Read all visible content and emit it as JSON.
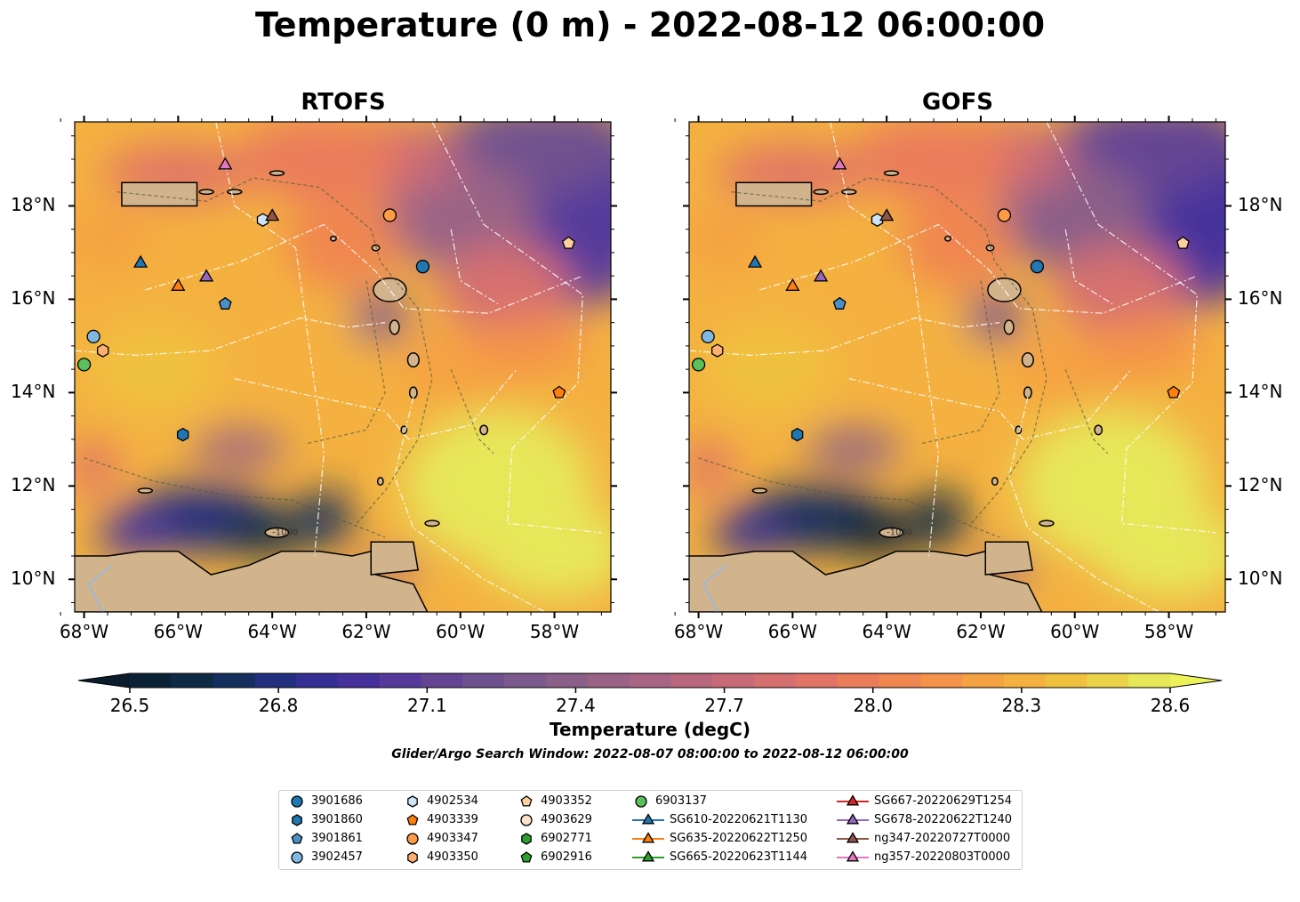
{
  "title": "Temperature (0 m) - 2022-08-12 06:00:00",
  "panels": [
    {
      "title": "RTOFS"
    },
    {
      "title": "GOFS"
    }
  ],
  "lat_labels": [
    "18°N",
    "16°N",
    "14°N",
    "12°N",
    "10°N"
  ],
  "lon_labels": [
    "68°W",
    "66°W",
    "64°W",
    "62°W",
    "60°W",
    "58°W"
  ],
  "contour_label": "-1000",
  "colorbar": {
    "label": "Temperature (degC)",
    "ticks": [
      "26.5",
      "26.8",
      "27.1",
      "27.4",
      "27.7",
      "28.0",
      "28.3",
      "28.6"
    ],
    "colors": [
      "#0b2236",
      "#0e2b46",
      "#142f5e",
      "#222f7f",
      "#352f93",
      "#45309c",
      "#553a9b",
      "#644594",
      "#70518f",
      "#7b5a8d",
      "#8a5f89",
      "#9a6386",
      "#a86583",
      "#b9677e",
      "#c86a78",
      "#d56f70",
      "#e17466",
      "#ea7c5b",
      "#f08650",
      "#f49349",
      "#f5a243",
      "#f4b140",
      "#f0c140",
      "#ebd349",
      "#e7e75a"
    ],
    "under": "#0b1c2d",
    "over": "#eef25a"
  },
  "search_window": "Glider/Argo Search Window: 2022-08-07 08:00:00 to 2022-08-12 06:00:00",
  "chart_data": {
    "type": "map",
    "x_range": [
      -68.2,
      -56.8
    ],
    "y_range": [
      9.3,
      19.8
    ],
    "xlabel": "",
    "ylabel": "",
    "grid": false,
    "legend_placement": "bottom",
    "colorbar_range": [
      26.5,
      28.6
    ],
    "series": [
      {
        "name": "3901686",
        "marker": "circle",
        "color": "#1f77b4",
        "lon": -60.8,
        "lat": 16.7
      },
      {
        "name": "3901860",
        "marker": "hexagon",
        "color": "#1f77b4",
        "lon": -65.9,
        "lat": 13.1
      },
      {
        "name": "3901861",
        "marker": "pentagon",
        "color": "#4a90c8",
        "lon": -65.0,
        "lat": 15.9
      },
      {
        "name": "3902457",
        "marker": "circle",
        "color": "#7fb8e3",
        "lon": -67.8,
        "lat": 15.2
      },
      {
        "name": "4902534",
        "marker": "hexagon",
        "color": "#cfe5f5",
        "lon": -64.2,
        "lat": 17.7
      },
      {
        "name": "4903339",
        "marker": "pentagon",
        "color": "#ff7f0e",
        "lon": -57.9,
        "lat": 14.0
      },
      {
        "name": "4903347",
        "marker": "circle",
        "color": "#ff9c45",
        "lon": -61.5,
        "lat": 17.8
      },
      {
        "name": "4903350",
        "marker": "hexagon",
        "color": "#ffb070",
        "lon": -67.6,
        "lat": 14.9
      },
      {
        "name": "4903352",
        "marker": "pentagon",
        "color": "#ffcfa0",
        "lon": -57.7,
        "lat": 17.2
      },
      {
        "name": "4903629",
        "marker": "circle",
        "color": "#ffe2c8",
        "lon": null,
        "lat": null
      },
      {
        "name": "6902771",
        "marker": "hexagon",
        "color": "#2ca02c",
        "lon": null,
        "lat": null
      },
      {
        "name": "6902916",
        "marker": "pentagon",
        "color": "#2ca02c",
        "lon": null,
        "lat": null
      },
      {
        "name": "6903137",
        "marker": "circle",
        "color": "#5bbf5b",
        "lon": -68.0,
        "lat": 14.6
      },
      {
        "name": "SG610-20220621T1130",
        "marker": "triangle",
        "color": "#1f77b4",
        "lon": -66.8,
        "lat": 16.8
      },
      {
        "name": "SG635-20220622T1250",
        "marker": "triangle",
        "color": "#ff7f0e",
        "lon": -66.0,
        "lat": 16.3
      },
      {
        "name": "SG665-20220623T1144",
        "marker": "triangle",
        "color": "#2ca02c",
        "lon": null,
        "lat": null
      },
      {
        "name": "SG667-20220629T1254",
        "marker": "triangle",
        "color": "#d62728",
        "lon": null,
        "lat": null
      },
      {
        "name": "SG678-20220622T1240",
        "marker": "triangle",
        "color": "#9467bd",
        "lon": -65.4,
        "lat": 16.5
      },
      {
        "name": "ng347-20220727T0000",
        "marker": "triangle",
        "color": "#8c564b",
        "lon": -64.0,
        "lat": 17.8
      },
      {
        "name": "ng357-20220803T0000",
        "marker": "triangle",
        "color": "#e377c2",
        "lon": -65.0,
        "lat": 18.9
      }
    ]
  }
}
